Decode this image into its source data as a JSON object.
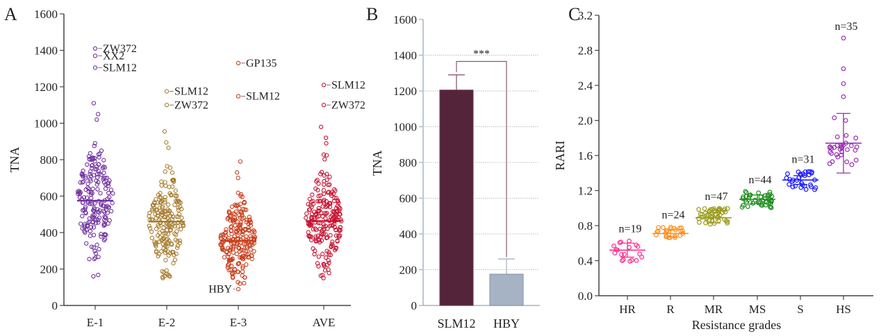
{
  "chart_data": [
    {
      "panel": "A",
      "type": "scatter",
      "subtype": "beeswarm-with-mean",
      "ylabel": "TNA",
      "xlabel": "",
      "ylim": [
        0,
        1600
      ],
      "yticks": [
        "0",
        "200",
        "400",
        "600",
        "800",
        "1000",
        "1200",
        "1400",
        "1600"
      ],
      "categories": [
        "E-1",
        "E-2",
        "E-3",
        "AVE"
      ],
      "series": [
        {
          "name": "E-1",
          "color": "#7030a0",
          "mean": 575,
          "n": 190,
          "min": 160,
          "max": 1110,
          "outliers": [
            {
              "value": 1410,
              "label": "ZW372"
            },
            {
              "value": 1370,
              "label": "XX2"
            },
            {
              "value": 1305,
              "label": "SLM12"
            }
          ]
        },
        {
          "name": "E-2",
          "color": "#a67c2e",
          "mean": 460,
          "n": 190,
          "min": 150,
          "max": 955,
          "outliers": [
            {
              "value": 1175,
              "label": "SLM12"
            },
            {
              "value": 1100,
              "label": "ZW372"
            }
          ]
        },
        {
          "name": "E-3",
          "color": "#c8401e",
          "mean": 354,
          "n": 220,
          "min": 120,
          "max": 790,
          "outliers": [
            {
              "value": 1330,
              "label": "GP135"
            },
            {
              "value": 1148,
              "label": "SLM12"
            },
            {
              "value": 90,
              "label": "HBY"
            }
          ]
        },
        {
          "name": "AVE",
          "color": "#c8102e",
          "mean": 463,
          "n": 210,
          "min": 150,
          "max": 980,
          "outliers": [
            {
              "value": 1210,
              "label": "SLM12"
            },
            {
              "value": 1100,
              "label": "ZW372"
            }
          ]
        }
      ]
    },
    {
      "panel": "B",
      "type": "bar",
      "ylabel": "TNA",
      "ylim": [
        0,
        1600
      ],
      "yticks": [
        "0",
        "200",
        "400",
        "600",
        "800",
        "1000",
        "1200",
        "1400",
        "1600"
      ],
      "grid": true,
      "categories": [
        "SLM12",
        "HBY"
      ],
      "values": [
        1205,
        175
      ],
      "errors": [
        85,
        85
      ],
      "colors": [
        "#54243a",
        "#a6b3c4"
      ],
      "significance": {
        "label": "***",
        "between": [
          "SLM12",
          "HBY"
        ],
        "y": 1365
      }
    },
    {
      "panel": "C",
      "type": "scatter",
      "subtype": "dot-plot-mean-sd",
      "xlabel": "Resistance grades",
      "ylabel": "RARI",
      "ylim": [
        0,
        3.2
      ],
      "yticks": [
        "0.0",
        "0.4",
        "0.8",
        "1.2",
        "1.6",
        "2.0",
        "2.4",
        "2.8",
        "3.2"
      ],
      "categories": [
        "HR",
        "R",
        "MR",
        "MS",
        "S",
        "HS"
      ],
      "series": [
        {
          "name": "HR",
          "color": "#ff2d8f",
          "n": 19,
          "n_label": "n=19",
          "mean": 0.52,
          "sd": 0.08,
          "min": 0.37,
          "max": 0.63
        },
        {
          "name": "R",
          "color": "#ff8c1a",
          "n": 24,
          "n_label": "n=24",
          "mean": 0.71,
          "sd": 0.04,
          "min": 0.65,
          "max": 0.79
        },
        {
          "name": "MR",
          "color": "#9a9a1a",
          "n": 47,
          "n_label": "n=47",
          "mean": 0.89,
          "sd": 0.06,
          "min": 0.81,
          "max": 1.0
        },
        {
          "name": "MS",
          "color": "#1e8c1e",
          "n": 44,
          "n_label": "n=44",
          "mean": 1.1,
          "sd": 0.05,
          "min": 1.0,
          "max": 1.19
        },
        {
          "name": "S",
          "color": "#1a1aff",
          "n": 31,
          "n_label": "n=31",
          "mean": 1.32,
          "sd": 0.05,
          "min": 1.21,
          "max": 1.42
        },
        {
          "name": "HS",
          "color": "#9a2eb4",
          "n": 35,
          "n_label": "n=35",
          "mean": 1.74,
          "sd": 0.34,
          "min": 1.45,
          "max": 2.94,
          "high_points": [
            2.94,
            2.59,
            2.42,
            2.27,
            2.03,
            2.0
          ]
        }
      ]
    }
  ],
  "panel_labels": [
    "A",
    "B",
    "C"
  ]
}
